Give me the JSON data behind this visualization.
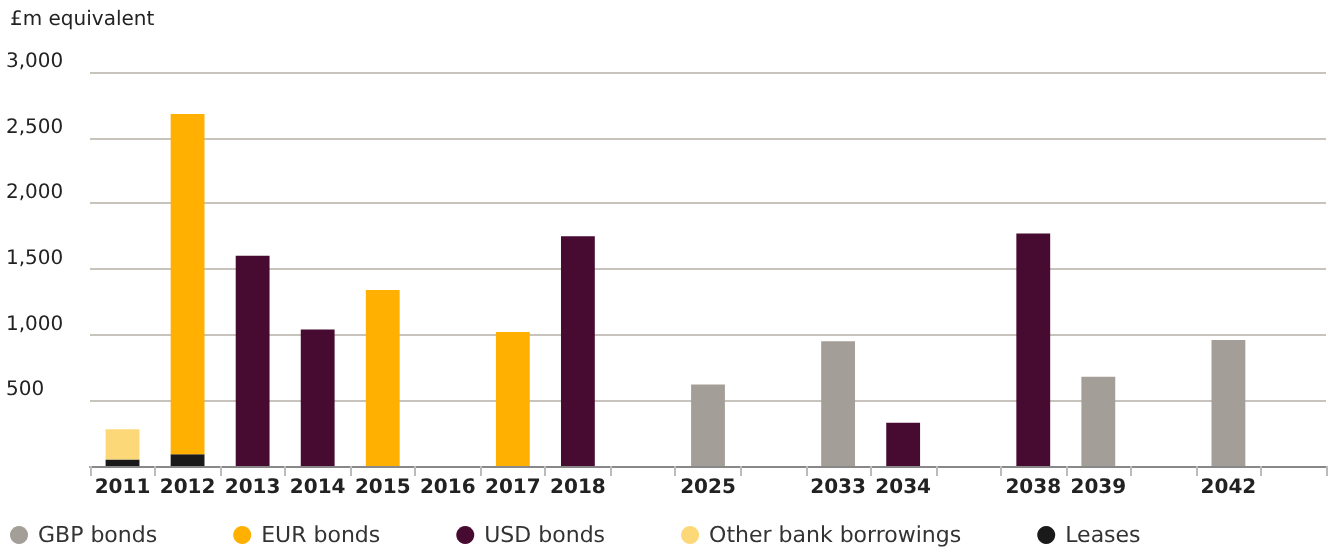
{
  "chart_data": {
    "type": "bar",
    "stacked": true,
    "ylabel": "£m equivalent",
    "categories": [
      "2011",
      "2012",
      "2013",
      "2014",
      "2015",
      "2016",
      "2017",
      "2018",
      null,
      "2025",
      null,
      "2033",
      "2034",
      null,
      "2038",
      "2039",
      null,
      "2042",
      null
    ],
    "series": [
      {
        "name": "Leases",
        "color": "#1a1a1a",
        "values": [
          50,
          90,
          null,
          null,
          null,
          null,
          null,
          null,
          null,
          null,
          null,
          null,
          null,
          null,
          null,
          null,
          null,
          null,
          null
        ]
      },
      {
        "name": "GBP bonds",
        "color": "#a39e97",
        "values": [
          null,
          null,
          null,
          null,
          null,
          null,
          null,
          null,
          null,
          620,
          null,
          950,
          null,
          null,
          null,
          680,
          null,
          960,
          null
        ]
      },
      {
        "name": "EUR bonds",
        "color": "#ffb000",
        "values": [
          null,
          2590,
          null,
          null,
          1340,
          null,
          1020,
          null,
          null,
          null,
          null,
          null,
          null,
          null,
          null,
          null,
          null,
          null,
          null
        ]
      },
      {
        "name": "USD bonds",
        "color": "#470a30",
        "values": [
          null,
          null,
          1600,
          1040,
          null,
          null,
          null,
          1750,
          null,
          null,
          null,
          null,
          330,
          null,
          1770,
          null,
          null,
          null,
          null
        ]
      },
      {
        "name": "Other bank borrowings",
        "color": "#fdd878",
        "values": [
          230,
          null,
          null,
          null,
          null,
          null,
          null,
          null,
          null,
          null,
          null,
          null,
          null,
          null,
          null,
          null,
          null,
          null,
          null
        ]
      }
    ],
    "ylim": [
      0,
      3000
    ],
    "yticks": [
      {
        "value": 0,
        "label": null
      },
      500,
      {
        "value": 1000,
        "label": "1,000"
      },
      {
        "value": 1500,
        "label": "1,500"
      },
      {
        "value": 2000,
        "label": "2,000"
      },
      {
        "value": 2500,
        "label": "2,500"
      },
      {
        "value": 3000,
        "label": "3,000"
      }
    ],
    "grid": "y",
    "legend": "bottom left"
  }
}
